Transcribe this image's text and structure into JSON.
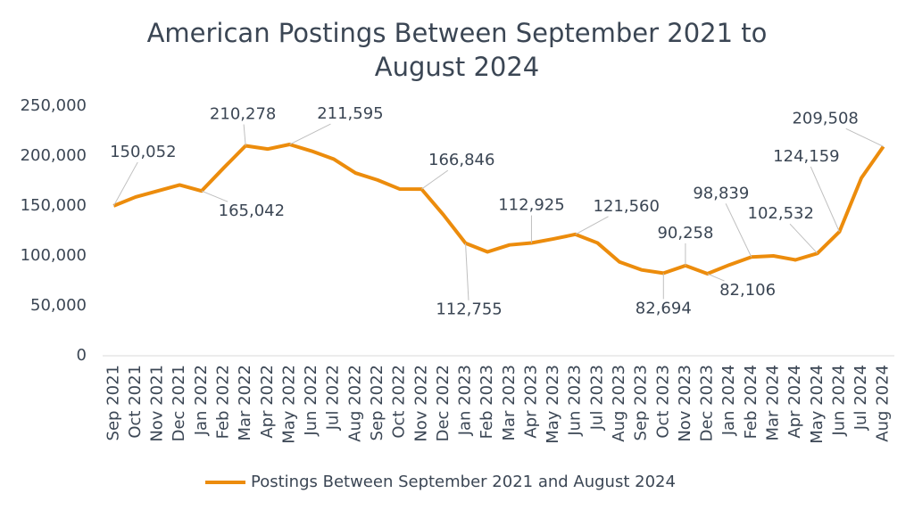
{
  "chart_data": {
    "type": "line",
    "title": "American Postings Between September 2021 to August 2024",
    "categories": [
      "Sep 2021",
      "Oct 2021",
      "Nov 2021",
      "Dec 2021",
      "Jan 2022",
      "Feb 2022",
      "Mar 2022",
      "Apr 2022",
      "May 2022",
      "Jun 2022",
      "Jul 2022",
      "Aug 2022",
      "Sep 2022",
      "Oct 2022",
      "Nov 2022",
      "Dec 2022",
      "Jan 2023",
      "Feb 2023",
      "Mar 2023",
      "Apr 2023",
      "May 2023",
      "Jun 2023",
      "Jul 2023",
      "Aug 2023",
      "Sep 2023",
      "Oct 2023",
      "Nov 2023",
      "Dec 2023",
      "Jan 2024",
      "Feb 2024",
      "Mar 2024",
      "Apr 2024",
      "May 2024",
      "Jun 2024",
      "Jul 2024",
      "Aug 2024"
    ],
    "series": [
      {
        "name": "Postings Between September 2021 and August 2024",
        "color": "#ec8c0c",
        "values": [
          150052,
          159000,
          165000,
          171000,
          165042,
          188000,
          210278,
          207000,
          211595,
          205000,
          197000,
          183000,
          176000,
          167000,
          166846,
          141000,
          112755,
          104000,
          111000,
          112925,
          117000,
          121560,
          113000,
          94000,
          86000,
          82694,
          90258,
          82106,
          91000,
          98839,
          100000,
          96000,
          102532,
          124159,
          178000,
          209508
        ],
        "value_labels": [
          "150,052",
          null,
          null,
          null,
          "165,042",
          null,
          "210,278",
          null,
          "211,595",
          null,
          null,
          null,
          null,
          null,
          "166,846",
          null,
          "112,755",
          null,
          null,
          "112,925",
          null,
          "121,560",
          null,
          null,
          null,
          "82,694",
          "90,258",
          "82,106",
          null,
          "98,839",
          null,
          null,
          "102,532",
          "124,159",
          null,
          "209,508"
        ]
      }
    ],
    "ylim": [
      0,
      250000
    ],
    "yticks": [
      0,
      {
        "value": 50000,
        "label": "50,000"
      },
      {
        "value": 100000,
        "label": "100,000"
      },
      {
        "value": 150000,
        "label": "150,000"
      },
      {
        "value": 200000,
        "label": "200,000"
      },
      {
        "value": 250000,
        "label": "250,000"
      }
    ],
    "legend": "bottom"
  }
}
